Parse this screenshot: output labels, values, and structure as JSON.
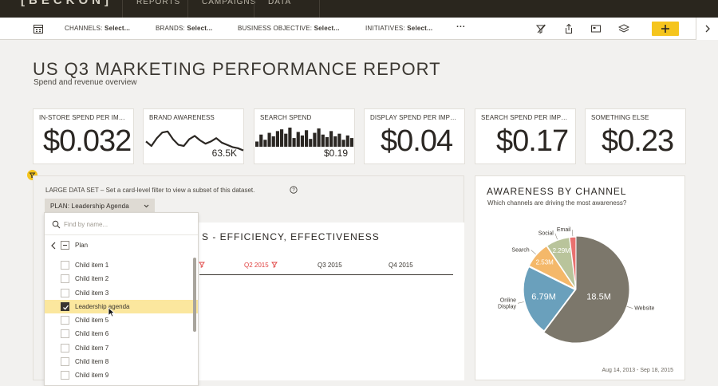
{
  "app": {
    "logo": "[BECKON]",
    "nav_tabs": [
      "REPORTS",
      "CAMPAIGNS",
      "DATA"
    ]
  },
  "filter_bar": {
    "filters": [
      {
        "label": "CHANNELS:",
        "value": "Select..."
      },
      {
        "label": "BRANDS:",
        "value": "Select..."
      },
      {
        "label": "BUSINESS OBJECTIVE:",
        "value": "Select..."
      },
      {
        "label": "INITIATIVES:",
        "value": "Select..."
      }
    ],
    "more": "···"
  },
  "report": {
    "title": "US Q3 MARKETING PERFORMANCE REPORT",
    "subtitle": "Spend and revenue overview"
  },
  "kpis": [
    {
      "label": "IN-STORE SPEND PER IMPRESSION",
      "value": "$0.032"
    },
    {
      "label": "BRAND AWARENESS",
      "value": "63.5K"
    },
    {
      "label": "SEARCH SPEND",
      "value": "$0.19"
    },
    {
      "label": "DISPLAY SPEND PER IMPRESSION",
      "value": "$0.04"
    },
    {
      "label": "SEARCH SPEND PER IMPRESSION",
      "value": "$0.17"
    },
    {
      "label": "SOMETHING ELSE",
      "value": "$0.23"
    }
  ],
  "sparkline_bars": [
    6,
    14,
    8,
    16,
    12,
    18,
    20,
    15,
    22,
    10,
    17,
    13,
    19,
    9,
    16,
    21,
    14,
    11,
    18,
    12,
    15,
    8,
    13,
    10
  ],
  "sparkline_line": [
    0.45,
    0.25,
    0.6,
    0.85,
    0.9,
    0.55,
    0.3,
    0.25,
    0.55,
    0.7,
    0.5,
    0.35,
    0.45,
    0.6,
    0.4,
    0.3,
    0.2,
    0.15,
    0.05
  ],
  "large_card": {
    "note": "LARGE DATA SET – Set a card-level filter to view a subset of this dataset.",
    "plan_chip": "PLAN: Leadership Agenda",
    "title": "S - EFFICIENCY, EFFECTIVENESS",
    "quarters": [
      {
        "label": "Q2 2015",
        "filtered": true
      },
      {
        "label": "Q3 2015",
        "filtered": false
      },
      {
        "label": "Q4 2015",
        "filtered": false
      }
    ]
  },
  "dropdown": {
    "placeholder": "Find by name...",
    "parent": "Plan",
    "items": [
      {
        "label": "Child item 1",
        "checked": false
      },
      {
        "label": "Child item 2",
        "checked": false
      },
      {
        "label": "Child item 3",
        "checked": false
      },
      {
        "label": "Leadership agenda",
        "checked": true
      },
      {
        "label": "Child item 5",
        "checked": false
      },
      {
        "label": "Child item 6",
        "checked": false
      },
      {
        "label": "Child item 7",
        "checked": false
      },
      {
        "label": "Child item 8",
        "checked": false
      },
      {
        "label": "Child item 9",
        "checked": false
      },
      {
        "label": "",
        "checked": false
      }
    ]
  },
  "awareness": {
    "title": "AWARENESS BY CHANNEL",
    "subtitle": "Which channels are driving the most awareness?",
    "date_range": "Aug 14, 2013 - Sep 18, 2015"
  },
  "chart_data": {
    "type": "pie",
    "title": "AWARENESS BY CHANNEL",
    "categories": [
      "Website",
      "Online Display",
      "Search",
      "Social",
      "Email"
    ],
    "values": [
      18.5,
      6.79,
      2.53,
      2.29,
      0.6
    ],
    "value_labels": [
      "18.5M",
      "6.79M",
      "2.53M",
      "2.29M",
      ""
    ],
    "colors": [
      "#7c776b",
      "#6aa0bc",
      "#f4b86a",
      "#b9c49b",
      "#e9716f"
    ]
  },
  "colors": {
    "accent": "#f5c51d",
    "nav_bg": "#2a261e",
    "filter_red": "#e0403f"
  }
}
